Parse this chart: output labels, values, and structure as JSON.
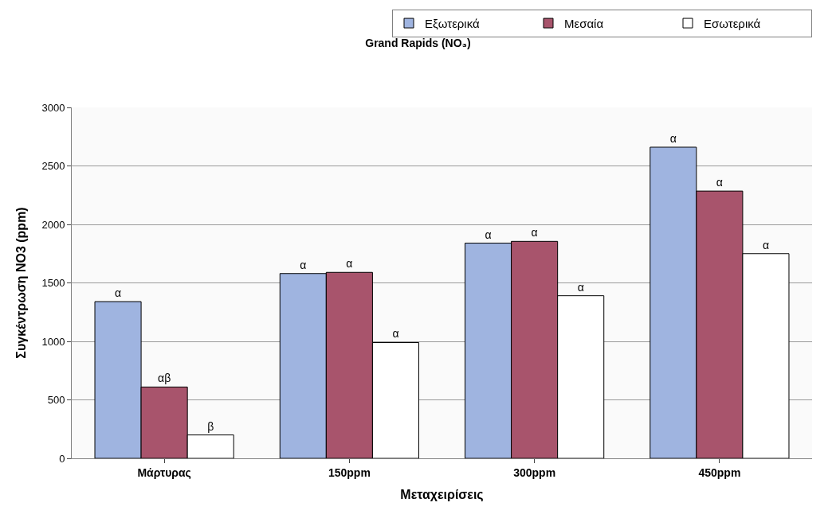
{
  "chart_data": {
    "type": "bar",
    "title": "Grand Rapids (NO₃)",
    "xlabel": "Μεταχειρίσεις",
    "ylabel": "Συγκέντρωση NO3 (ppm)",
    "categories": [
      "Μάρτυρας",
      "150ppm",
      "300ppm",
      "450ppm"
    ],
    "series": [
      {
        "name": "Εξωτερικά",
        "color": "#9fb4e0",
        "values": [
          1340,
          1580,
          1840,
          2660
        ],
        "value_labels": [
          "α",
          "α",
          "α",
          "α"
        ]
      },
      {
        "name": "Μεσαία",
        "color": "#a8546c",
        "values": [
          610,
          1590,
          1855,
          2285
        ],
        "value_labels": [
          "αβ",
          "α",
          "α",
          "α"
        ]
      },
      {
        "name": "Εσωτερικά",
        "color": "#ffffff",
        "values": [
          200,
          990,
          1390,
          1750
        ],
        "value_labels": [
          "β",
          "α",
          "α",
          "α"
        ]
      }
    ],
    "ylim": [
      0,
      3000
    ],
    "yticks": [
      0,
      500,
      1000,
      1500,
      2000,
      2500,
      3000
    ],
    "grid": "y",
    "legend": "top right"
  }
}
